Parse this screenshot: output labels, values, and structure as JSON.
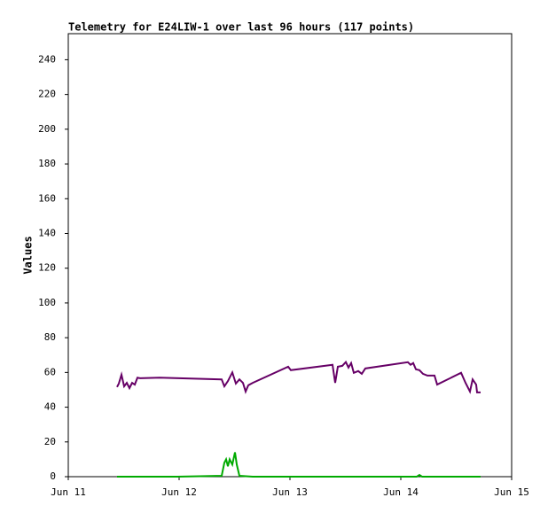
{
  "chart_data": {
    "type": "line",
    "title": "Telemetry for E24LIW-1 over last 96 hours (117 points)",
    "y_label": "Values",
    "xlim": [
      11,
      15
    ],
    "xticks": [
      {
        "value": 11,
        "label": "Jun 11"
      },
      {
        "value": 12,
        "label": "Jun 12"
      },
      {
        "value": 13,
        "label": "Jun 13"
      },
      {
        "value": 14,
        "label": "Jun 14"
      },
      {
        "value": 15,
        "label": "Jun 15"
      }
    ],
    "ylim": [
      0,
      255
    ],
    "yticks": [
      0,
      20,
      40,
      60,
      80,
      100,
      120,
      140,
      160,
      180,
      200,
      220,
      240
    ],
    "grid": false,
    "series": [
      {
        "color": "#660066",
        "x": [
          11.44,
          11.456,
          11.48,
          11.504,
          11.528,
          11.552,
          11.576,
          11.6,
          11.624,
          11.648,
          11.824,
          12.384,
          12.408,
          12.44,
          12.48,
          12.512,
          12.544,
          12.576,
          12.6,
          12.624,
          12.664,
          12.984,
          13.008,
          13.384,
          13.408,
          13.432,
          13.472,
          13.504,
          13.528,
          13.552,
          13.576,
          13.616,
          13.648,
          13.68,
          14.064,
          14.088,
          14.112,
          14.136,
          14.168,
          14.2,
          14.24,
          14.304,
          14.328,
          14.544,
          14.584,
          14.624,
          14.648,
          14.68,
          14.688,
          14.72
        ],
        "values": [
          51.6,
          53.6,
          58.7,
          52,
          54,
          51,
          54,
          53,
          57,
          56.7,
          57,
          56,
          52,
          55,
          60,
          53.6,
          56,
          54,
          49,
          52.6,
          54,
          63.3,
          61.3,
          64.4,
          54,
          63.3,
          63.8,
          66,
          62.8,
          65.4,
          59.8,
          60.8,
          59.2,
          62.3,
          65.9,
          64.4,
          65.4,
          61.8,
          61.3,
          59.2,
          58.2,
          58.2,
          53,
          59.8,
          54,
          49,
          56,
          53,
          48.5,
          48.5
        ]
      },
      {
        "color": "#00aa00",
        "x": [
          11.44,
          11.984,
          12.384,
          12.408,
          12.424,
          12.44,
          12.456,
          12.48,
          12.504,
          12.52,
          12.544,
          12.664,
          13.584,
          14.144,
          14.168,
          14.192,
          14.72
        ],
        "values": [
          0,
          0,
          0.5,
          8,
          10,
          6,
          10,
          7,
          14,
          7,
          0.5,
          0,
          0,
          0,
          1,
          0,
          0
        ]
      }
    ]
  }
}
